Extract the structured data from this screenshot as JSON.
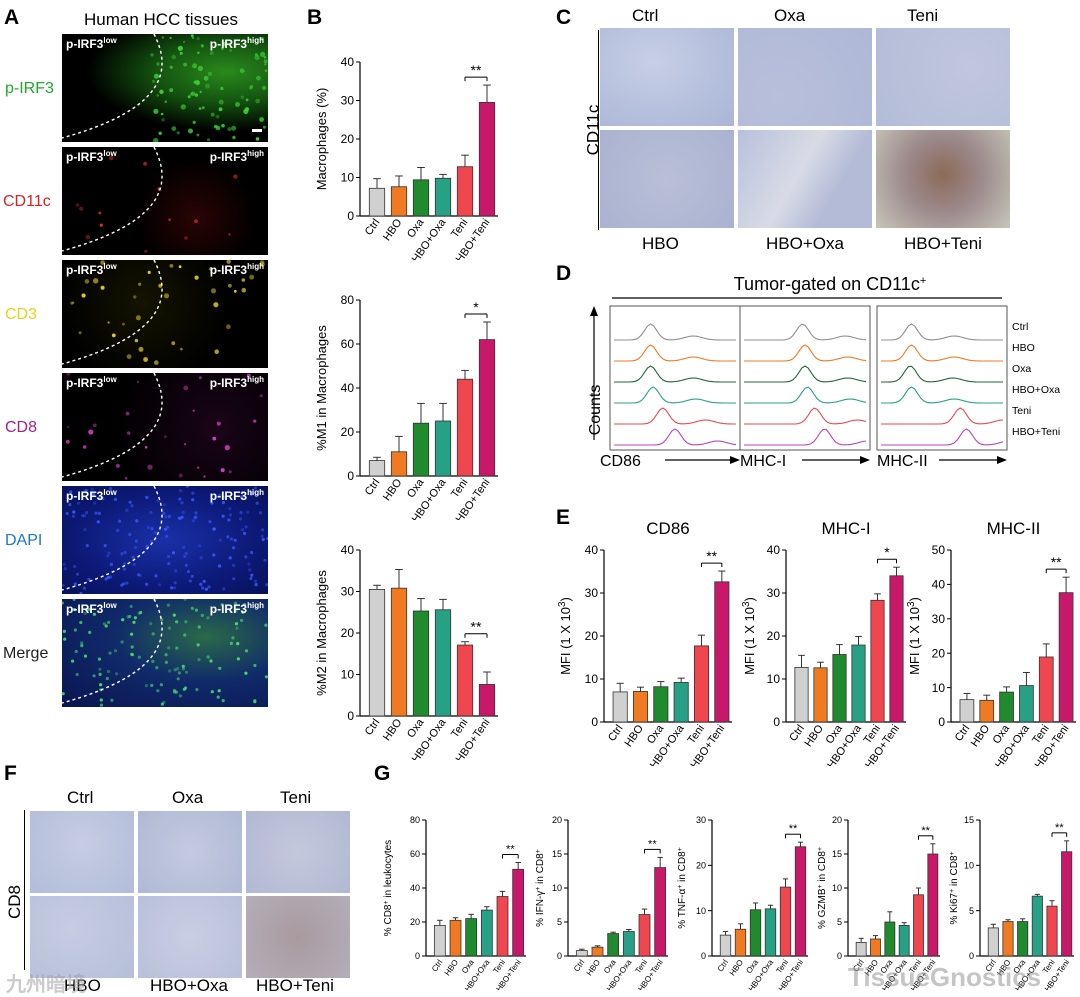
{
  "colors": {
    "ctrl": "#d0d0d0",
    "hbo": "#f07a22",
    "oxa": "#1f8a2e",
    "hbooxa": "#27a085",
    "teni": "#f04650",
    "hboteni": "#c8186a"
  },
  "groups": [
    "Ctrl",
    "HBO",
    "Oxa",
    "HBO+Oxa",
    "Teni",
    "HBO+Teni"
  ],
  "panelA": {
    "letter": "A",
    "title": "Human HCC tissues",
    "low": "p-IRF3",
    "high": "p-IRF3",
    "sup_low": "low",
    "sup_high": "high",
    "rows": [
      {
        "label": "p-IRF3",
        "color": "#1faa2a"
      },
      {
        "label": "CD11c",
        "color": "#e0201c"
      },
      {
        "label": "CD3",
        "color": "#e6d21a"
      },
      {
        "label": "CD8",
        "color": "#a0208c"
      },
      {
        "label": "DAPI",
        "color": "#1e78c8"
      },
      {
        "label": "Merge",
        "color": "#222222"
      }
    ]
  },
  "panelB": {
    "letter": "B"
  },
  "panelC": {
    "letter": "C",
    "cols": [
      "Ctrl",
      "Oxa",
      "Teni"
    ],
    "bottom": [
      "HBO",
      "HBO+Oxa",
      "HBO+Teni"
    ],
    "ylabel": "CD11c"
  },
  "panelD": {
    "letter": "D",
    "header": "Tumor-gated on CD11c",
    "header_sup": "+",
    "ylabel": "Counts",
    "xlabels": [
      "CD86",
      "MHC-I",
      "MHC-II"
    ],
    "legend": [
      "Ctrl",
      "HBO",
      "Oxa",
      "HBO+Oxa",
      "Teni",
      "HBO+Teni"
    ],
    "legend_colors": [
      "#909090",
      "#f07a22",
      "#1f6a36",
      "#27a085",
      "#f04650",
      "#c040c0"
    ]
  },
  "panelE": {
    "letter": "E"
  },
  "panelF": {
    "letter": "F",
    "cols": [
      "Ctrl",
      "Oxa",
      "Teni"
    ],
    "bottom": [
      "HBO",
      "HBO+Oxa",
      "HBO+Teni"
    ],
    "ylabel": "CD8"
  },
  "panelG": {
    "letter": "G"
  },
  "watermark": {
    "left": "九州暗境",
    "right": "TissueGnostics"
  },
  "chart_data": [
    {
      "id": "B1",
      "type": "bar",
      "ylabel": "Macrophages (%)",
      "ylim": [
        0,
        40
      ],
      "ticks": [
        0,
        10,
        20,
        30,
        40
      ],
      "values": [
        7.2,
        7.6,
        9.4,
        9.8,
        12.8,
        29.5
      ],
      "errors": [
        2.5,
        2.8,
        3.2,
        1.0,
        3.0,
        4.5
      ],
      "sig": "**"
    },
    {
      "id": "B2",
      "type": "bar",
      "ylabel": "%M1 in Macrophages",
      "ylim": [
        0,
        80
      ],
      "ticks": [
        0,
        20,
        40,
        60,
        80
      ],
      "values": [
        7,
        11,
        24,
        25,
        44,
        62
      ],
      "errors": [
        1.5,
        7,
        9,
        8,
        4,
        8
      ],
      "sig": "*"
    },
    {
      "id": "B3",
      "type": "bar",
      "ylabel": "%M2 in Macrophages",
      "ylim": [
        0,
        40
      ],
      "ticks": [
        0,
        10,
        20,
        30,
        40
      ],
      "values": [
        30.5,
        30.8,
        25.3,
        25.6,
        17.1,
        7.6
      ],
      "errors": [
        1.0,
        4.5,
        3.0,
        2.5,
        0.8,
        3.0
      ],
      "sig": "**"
    },
    {
      "id": "E1",
      "type": "bar",
      "title": "CD86",
      "ylabel": "MFI (1 X 10",
      "ylabel_sup": "3",
      "ylabel_end": ")",
      "ylim": [
        0,
        40
      ],
      "ticks": [
        0,
        10,
        20,
        30,
        40
      ],
      "values": [
        7,
        7.1,
        8.2,
        9.2,
        17.7,
        32.6
      ],
      "errors": [
        2,
        1,
        1.2,
        1,
        2.5,
        2.5
      ],
      "sig": "**"
    },
    {
      "id": "E2",
      "type": "bar",
      "title": "MHC-I",
      "ylabel": "MFI (1 X 10",
      "ylabel_sup": "3",
      "ylabel_end": ")",
      "ylim": [
        0,
        40
      ],
      "ticks": [
        0,
        10,
        20,
        30,
        40
      ],
      "values": [
        12.7,
        12.6,
        15.7,
        17.9,
        28.3,
        34
      ],
      "errors": [
        2.8,
        1.3,
        2.3,
        2.0,
        1.5,
        2.0
      ],
      "sig": "*"
    },
    {
      "id": "E3",
      "type": "bar",
      "title": "MHC-II",
      "ylabel": "MFI (1 X 10",
      "ylabel_sup": "3",
      "ylabel_end": ")",
      "ylim": [
        0,
        50
      ],
      "ticks": [
        0,
        10,
        20,
        30,
        40,
        50
      ],
      "values": [
        6.5,
        6.3,
        8.7,
        10.6,
        18.9,
        37.6
      ],
      "errors": [
        1.8,
        1.5,
        1.5,
        3.8,
        3.8,
        4.5
      ],
      "sig": "**"
    },
    {
      "id": "G1",
      "type": "bar",
      "ylabel": "% CD8",
      "ylabel_sup": "+",
      "ylabel_end": " in leukocytes",
      "ylim": [
        0,
        80
      ],
      "ticks": [
        0,
        20,
        40,
        60,
        80
      ],
      "values": [
        18,
        21,
        22,
        27,
        35,
        51
      ],
      "errors": [
        3,
        1.5,
        2.5,
        2,
        3,
        4
      ],
      "sig": "**"
    },
    {
      "id": "G2",
      "type": "bar",
      "ylabel": "% IFN-γ",
      "ylabel_sup": "+",
      "ylabel_end": " in CD8",
      "ylabel_sup2": "+",
      "ylim": [
        0,
        20
      ],
      "ticks": [
        0,
        5,
        10,
        15,
        20
      ],
      "values": [
        0.8,
        1.3,
        3.3,
        3.6,
        6.1,
        13
      ],
      "errors": [
        0.2,
        0.2,
        0.2,
        0.3,
        0.8,
        1.5
      ],
      "sig": "**"
    },
    {
      "id": "G3",
      "type": "bar",
      "ylabel": "% TNF-α",
      "ylabel_sup": "+",
      "ylabel_end": " in CD8",
      "ylabel_sup2": "+",
      "ylim": [
        0,
        30
      ],
      "ticks": [
        0,
        10,
        20,
        30
      ],
      "values": [
        4.6,
        5.9,
        10.2,
        10.4,
        15.2,
        24.1
      ],
      "errors": [
        0.8,
        1.2,
        1.5,
        0.8,
        1.8,
        1.0
      ],
      "sig": "**"
    },
    {
      "id": "G4",
      "type": "bar",
      "ylabel": "% GZMB",
      "ylabel_sup": "+",
      "ylabel_end": " in CD8",
      "ylabel_sup2": "+",
      "ylim": [
        0,
        20
      ],
      "ticks": [
        0,
        5,
        10,
        15,
        20
      ],
      "values": [
        2,
        2.5,
        5,
        4.5,
        9,
        15
      ],
      "errors": [
        0.6,
        0.5,
        1.5,
        0.4,
        1.0,
        1.5
      ],
      "sig": "**"
    },
    {
      "id": "G5",
      "type": "bar",
      "ylabel": "% Ki67",
      "ylabel_sup": "+",
      "ylabel_end": " in CD8",
      "ylabel_sup2": "+",
      "ylim": [
        0,
        15
      ],
      "ticks": [
        0,
        5,
        10,
        15
      ],
      "values": [
        3.1,
        3.8,
        3.8,
        6.6,
        5.5,
        11.5
      ],
      "errors": [
        0.4,
        0.2,
        0.3,
        0.2,
        0.6,
        1.2
      ],
      "sig": "**"
    }
  ]
}
